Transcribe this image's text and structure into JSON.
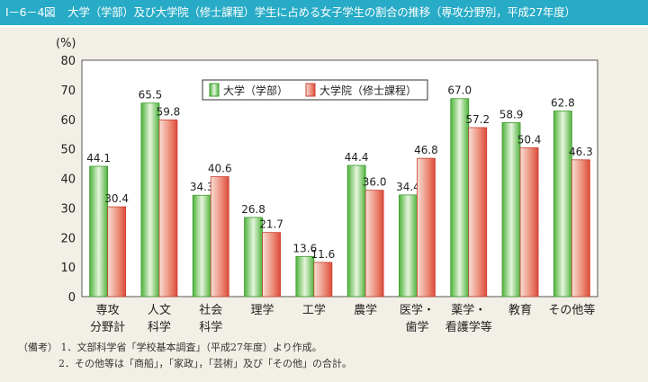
{
  "figure_number": "I－6－4図",
  "title": "大学（学部）及び大学院（修士課程）学生に占める女子学生の割合の推移（専攻分野別，平成27年度）",
  "colors": {
    "header": "#27abc6",
    "undergrad": "#5cbf4a",
    "graduate": "#e3604e",
    "background": "#f2efe6"
  },
  "chart_data": {
    "type": "bar",
    "ylabel": "(%)",
    "ylim": [
      0,
      80
    ],
    "yticks": [
      0,
      10,
      20,
      30,
      40,
      50,
      60,
      70,
      80
    ],
    "grid": false,
    "legend_placement": "top-center",
    "categories": [
      [
        "専攻",
        "分野計"
      ],
      [
        "人文",
        "科学"
      ],
      [
        "社会",
        "科学"
      ],
      [
        "理学"
      ],
      [
        "工学"
      ],
      [
        "農学"
      ],
      [
        "医学・",
        "歯学"
      ],
      [
        "薬学・",
        "看護学等"
      ],
      [
        "教育"
      ],
      [
        "その他等"
      ]
    ],
    "series": [
      {
        "name": "大学（学部）",
        "values": [
          44.1,
          65.5,
          34.3,
          26.8,
          13.6,
          44.4,
          34.4,
          67.0,
          58.9,
          62.8
        ]
      },
      {
        "name": "大学院（修士課程）",
        "values": [
          30.4,
          59.8,
          40.6,
          21.7,
          11.6,
          36.0,
          46.8,
          57.2,
          50.4,
          46.3
        ]
      }
    ]
  },
  "notes": {
    "label": "（備考）",
    "items": [
      "1．文部科学省「学校基本調査」（平成27年度）より作成。",
      "2．その他等は「商船」，「家政」，「芸術」及び「その他」の合計。"
    ]
  }
}
